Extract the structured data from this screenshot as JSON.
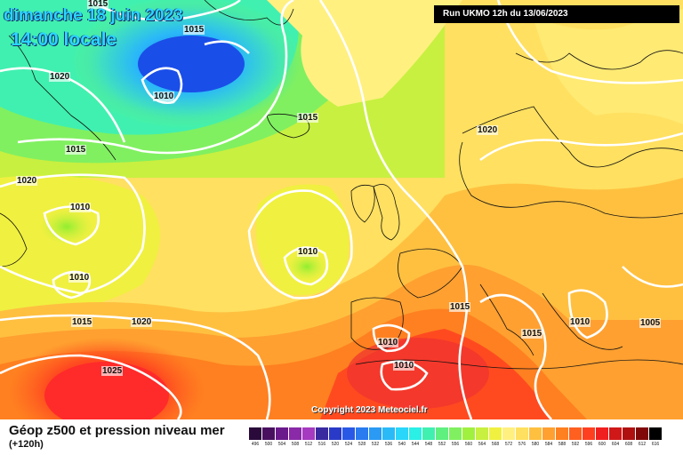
{
  "header": {
    "date_title": "dimanche 18 juin 2023",
    "time_title": "14:00 locale",
    "run_label": "Run UKMO 12h du 13/06/2023"
  },
  "copyright": "Copyright 2023 Meteociel.fr",
  "footer": {
    "title": "Géop z500 et pression niveau mer",
    "subtitle": "(+120h)"
  },
  "isobars": [
    {
      "label": "1015"
    },
    {
      "label": "1015"
    },
    {
      "label": "1020"
    },
    {
      "label": "1010"
    },
    {
      "label": "1015"
    },
    {
      "label": "1015"
    },
    {
      "label": "1020"
    },
    {
      "label": "1010"
    },
    {
      "label": "1010"
    },
    {
      "label": "1010"
    },
    {
      "label": "1015"
    },
    {
      "label": "1020"
    },
    {
      "label": "1025"
    },
    {
      "label": "1020"
    },
    {
      "label": "1015"
    },
    {
      "label": "1010"
    },
    {
      "label": "1010"
    },
    {
      "label": "1015"
    },
    {
      "label": "1010"
    },
    {
      "label": "1005"
    }
  ],
  "colorbar": {
    "ticks": [
      "496",
      "500",
      "504",
      "508",
      "512",
      "516",
      "520",
      "524",
      "528",
      "532",
      "536",
      "540",
      "544",
      "548",
      "552",
      "556",
      "560",
      "564",
      "568",
      "572",
      "576",
      "580",
      "584",
      "588",
      "592",
      "596",
      "600",
      "604",
      "608",
      "612",
      "616"
    ],
    "colors": [
      "#2a0a3a",
      "#4a1060",
      "#6a1a8a",
      "#8a2aa8",
      "#a63ac0",
      "#3a2aa0",
      "#2a3ac8",
      "#2a58e6",
      "#2a7af0",
      "#2a9af4",
      "#2abaf8",
      "#2ad6fa",
      "#2af0e6",
      "#40f0b0",
      "#60f080",
      "#80f060",
      "#a0f040",
      "#c8f040",
      "#f0f040",
      "#fff080",
      "#ffe060",
      "#ffc040",
      "#ffa030",
      "#ff8020",
      "#ff6020",
      "#ff4020",
      "#f02020",
      "#d01818",
      "#b01010",
      "#800808",
      "#000000"
    ]
  }
}
